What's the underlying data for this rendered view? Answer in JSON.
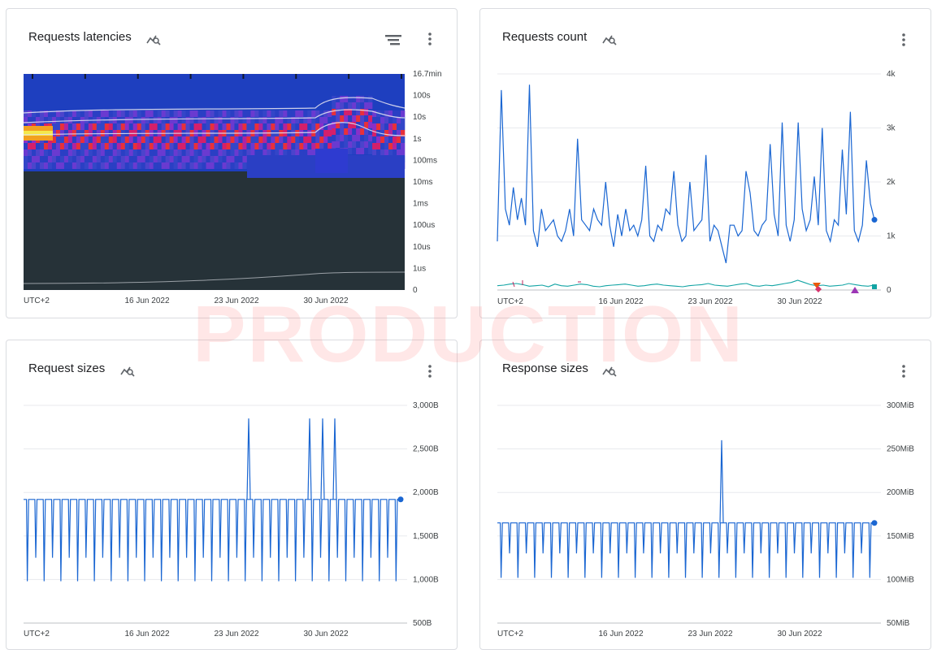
{
  "watermark": "PRODUCTION",
  "colors": {
    "line": "#1a66d2",
    "grid": "#e8eaed",
    "axis": "#bdc1c6",
    "heat_bg": "#263238"
  },
  "cards": [
    {
      "title": "Requests latencies",
      "has_legend_icon": true
    },
    {
      "title": "Requests count",
      "has_legend_icon": false
    },
    {
      "title": "Request sizes",
      "has_legend_icon": false
    },
    {
      "title": "Response sizes",
      "has_legend_icon": false
    }
  ],
  "chart_data": [
    {
      "type": "heatmap",
      "title": "Requests latencies",
      "y_ticks": [
        "16.7min",
        "100s",
        "10s",
        "1s",
        "100ms",
        "10ms",
        "1ms",
        "100us",
        "10us",
        "1us",
        "0"
      ],
      "x_ticks": [
        "UTC+2",
        "16 Jun 2022",
        "23 Jun 2022",
        "30 Jun 2022"
      ],
      "percentile_lines": [
        "p99",
        "p95",
        "p50"
      ]
    },
    {
      "type": "line",
      "title": "Requests count",
      "y_ticks": [
        "4k",
        "3k",
        "2k",
        "1k",
        "0"
      ],
      "ylim": [
        0,
        4000
      ],
      "x_ticks": [
        "UTC+2",
        "16 Jun 2022",
        "23 Jun 2022",
        "30 Jun 2022"
      ],
      "series": [
        {
          "values": [
            900,
            3700,
            1500,
            1200,
            1900,
            1300,
            1700,
            1200,
            3800,
            1100,
            800,
            1500,
            1100,
            1200,
            1300,
            1000,
            900,
            1100,
            1500,
            1000,
            2800,
            1300,
            1200,
            1100,
            1500,
            1300,
            1200,
            2000,
            1200,
            800,
            1400,
            1000,
            1500,
            1100,
            1200,
            1000,
            1300,
            2300,
            1000,
            900,
            1200,
            1100,
            1500,
            1400,
            2200,
            1200,
            900,
            1000,
            2000,
            1100,
            1200,
            1300,
            2500,
            900,
            1200,
            1100,
            800,
            500,
            1200,
            1200,
            1000,
            1100,
            2200,
            1800,
            1100,
            1000,
            1200,
            1300,
            2700,
            1400,
            1000,
            3100,
            1200,
            900,
            1300,
            3100,
            1500,
            1100,
            1300,
            2100,
            1200,
            3000,
            1100,
            900,
            1300,
            1200,
            2600,
            1400,
            3300,
            1100,
            900,
            1200,
            2400,
            1600,
            1300
          ]
        },
        {
          "values": [
            80,
            90,
            110,
            120,
            100,
            70,
            80,
            90,
            60,
            110,
            80,
            70,
            90,
            110,
            100,
            70,
            60,
            80,
            90,
            100,
            110,
            90,
            70,
            80,
            100,
            110,
            90,
            80,
            70,
            60,
            80,
            90,
            100,
            120,
            90,
            80,
            70,
            90,
            110,
            120,
            80,
            70,
            90,
            80,
            100,
            120,
            140,
            180,
            140,
            100,
            80,
            90,
            70,
            80,
            90,
            120,
            100,
            80,
            70,
            90
          ]
        }
      ],
      "annotations": [
        "triangle-down",
        "diamond",
        "triangle-up",
        "square"
      ]
    },
    {
      "type": "line",
      "title": "Request sizes",
      "y_ticks": [
        "3,000B",
        "2,500B",
        "2,000B",
        "1,500B",
        "1,000B",
        "500B"
      ],
      "ylim": [
        500,
        3000
      ],
      "x_ticks": [
        "UTC+2",
        "16 Jun 2022",
        "23 Jun 2022",
        "30 Jun 2022"
      ],
      "baseline": 1920,
      "low": 980,
      "mid": 1250,
      "spikes": [
        {
          "near_tick": "23 Jun 2022",
          "value": 2850
        },
        {
          "near_tick": "30 Jun 2022",
          "value": 2850
        },
        {
          "near_tick": "30 Jun 2022",
          "value": 2850
        },
        {
          "near_tick": "30 Jun 2022",
          "value": 2850
        }
      ],
      "last_value": 1920
    },
    {
      "type": "line",
      "title": "Response sizes",
      "y_ticks": [
        "300MiB",
        "250MiB",
        "200MiB",
        "150MiB",
        "100MiB",
        "50MiB"
      ],
      "ylim": [
        50,
        300
      ],
      "x_ticks": [
        "UTC+2",
        "16 Jun 2022",
        "23 Jun 2022",
        "30 Jun 2022"
      ],
      "baseline": 165,
      "low": 102,
      "mid": 130,
      "spikes": [
        {
          "near_tick": "23 Jun 2022",
          "value": 260
        }
      ],
      "last_value": 165
    }
  ]
}
